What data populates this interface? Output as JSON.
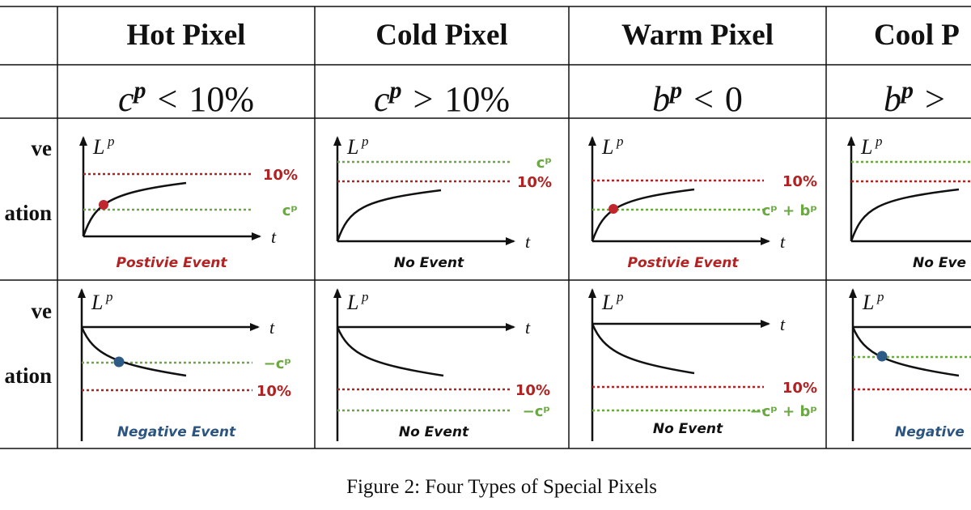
{
  "columns": [
    {
      "header": "Hot Pixel",
      "cond_sym": "c",
      "cond_sup": "p",
      "cond_rel": "<",
      "cond_val": "10%"
    },
    {
      "header": "Cold Pixel",
      "cond_sym": "c",
      "cond_sup": "p",
      "cond_rel": ">",
      "cond_val": "10%"
    },
    {
      "header": "Warm Pixel",
      "cond_sym": "b",
      "cond_sup": "p",
      "cond_rel": "<",
      "cond_val": "0"
    },
    {
      "header": "Cool P",
      "cond_sym": "b",
      "cond_sup": "p",
      "cond_rel": ">",
      "cond_val": ""
    }
  ],
  "row_labels": {
    "positive": {
      "line1": "ve",
      "line2": "ation"
    },
    "negative": {
      "line1": "ve",
      "line2": "ation"
    }
  },
  "axis": {
    "y_label": "L",
    "y_sup": "p",
    "x_label": "t"
  },
  "cells": {
    "positive": [
      {
        "refs": [
          {
            "text": "10%",
            "kind": "threshold"
          },
          {
            "text": "cᵖ",
            "kind": "contrast"
          }
        ],
        "event": "Postivie Event",
        "event_kind": "positive"
      },
      {
        "refs": [
          {
            "text": "cᵖ",
            "kind": "contrast"
          },
          {
            "text": "10%",
            "kind": "threshold"
          }
        ],
        "event": "No Event",
        "event_kind": "none"
      },
      {
        "refs": [
          {
            "text": "10%",
            "kind": "threshold"
          },
          {
            "text": "cᵖ + bᵖ",
            "kind": "contrast"
          }
        ],
        "event": "Postivie Event",
        "event_kind": "positive"
      },
      {
        "refs": [],
        "event": "No Eve",
        "event_kind": "none"
      }
    ],
    "negative": [
      {
        "refs": [
          {
            "text": "−cᵖ",
            "kind": "contrast"
          },
          {
            "text": "10%",
            "kind": "threshold"
          }
        ],
        "event": "Negative Event",
        "event_kind": "negative"
      },
      {
        "refs": [
          {
            "text": "10%",
            "kind": "threshold"
          },
          {
            "text": "−cᵖ",
            "kind": "contrast"
          }
        ],
        "event": "No Event",
        "event_kind": "none"
      },
      {
        "refs": [
          {
            "text": "10%",
            "kind": "threshold"
          },
          {
            "text": "−cᵖ + bᵖ",
            "kind": "contrast"
          }
        ],
        "event": "No Event",
        "event_kind": "none"
      },
      {
        "refs": [],
        "event": "Negative",
        "event_kind": "negative"
      }
    ]
  },
  "colors": {
    "threshold": "#b22222",
    "contrast": "#6aa842",
    "positive_event": "#b22222",
    "negative_event": "#2b5580",
    "no_event": "#111111",
    "curve": "#111111",
    "positive_dot": "#c0262e",
    "negative_dot": "#2e5b86"
  },
  "caption": "Figure 2:  Four Types of Special Pixels"
}
